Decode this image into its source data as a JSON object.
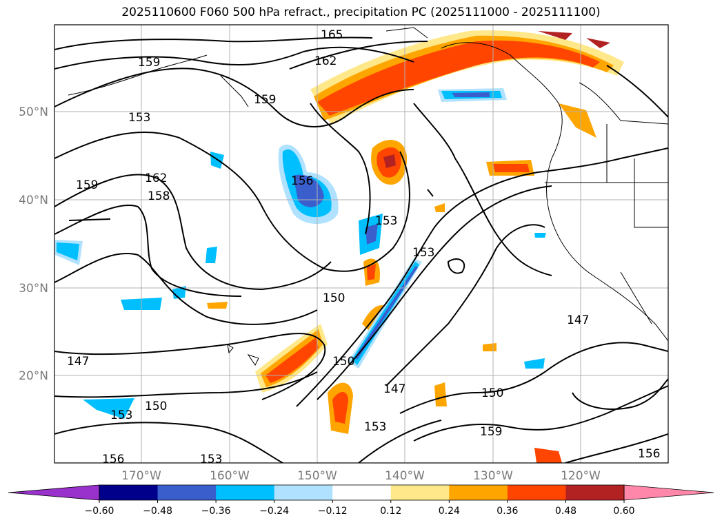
{
  "title": "2025110600 F060 500 hPa refract., precipitation PC (2025111000 - 2025111100)",
  "latitude_labels": [
    "50°N",
    "40°N",
    "30°N",
    "20°N"
  ],
  "longitude_labels": [
    "170°W",
    "160°W",
    "150°W",
    "140°W",
    "130°W",
    "120°W"
  ],
  "contour_labels": [
    "165",
    "162",
    "159",
    "159",
    "153",
    "162",
    "158",
    "159",
    "156",
    "153",
    "153",
    "150",
    "150",
    "150",
    "147",
    "147",
    "147",
    "150",
    "153",
    "153",
    "159",
    "156",
    "153",
    "156"
  ],
  "colorbar": {
    "ticks": [
      "−0.60",
      "−0.48",
      "−0.36",
      "−0.24",
      "−0.12",
      "0.12",
      "0.24",
      "0.36",
      "0.48",
      "0.60"
    ],
    "colors": [
      "#9932cc",
      "#00008b",
      "#3a5fcd",
      "#00bfff",
      "#b0e2ff",
      "#ffffff",
      "#ffe88a",
      "#ffa500",
      "#ff4500",
      "#b22222",
      "#ff88aa"
    ]
  },
  "colors": {
    "neg_strong": "#3a5fcd",
    "neg_mid": "#00bfff",
    "neg_light": "#b0e2ff",
    "pos_light": "#ffe88a",
    "pos_mid": "#ffa500",
    "pos_strong": "#ff4500",
    "pos_max": "#b22222"
  }
}
